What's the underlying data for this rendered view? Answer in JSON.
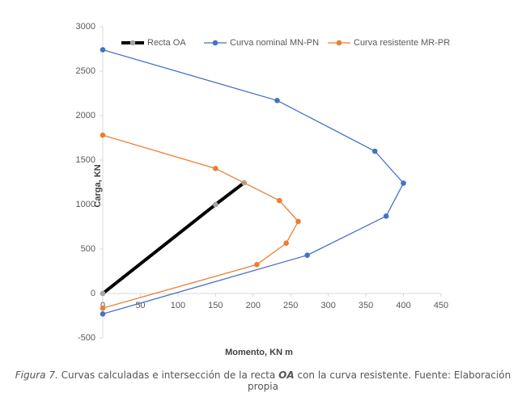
{
  "chart_data": {
    "type": "line",
    "x_label": "Momento, KN m",
    "y_label": "Carga, KN",
    "xlim": [
      0,
      450
    ],
    "xticks": [
      0,
      50,
      100,
      150,
      200,
      250,
      300,
      350,
      400,
      450
    ],
    "ylim": [
      -500,
      3000
    ],
    "yticks": [
      -500,
      0,
      500,
      1000,
      1500,
      2000,
      2500,
      3000
    ],
    "grid": false,
    "legend": "top",
    "series": [
      {
        "name": "Recta OA",
        "color": "#000000",
        "marker_color": "#a5a5a5",
        "line_width": 4,
        "x": [
          0,
          150,
          188
        ],
        "values": [
          0,
          1000,
          1245
        ]
      },
      {
        "name": "Curva nominal MN-PN",
        "color": "#4472c4",
        "marker_color": "#4472c4",
        "line_width": 1.3,
        "x": [
          0,
          232,
          362,
          400,
          377,
          272,
          0
        ],
        "values": [
          2740,
          2170,
          1600,
          1240,
          870,
          430,
          -230
        ]
      },
      {
        "name": "Curva resistente MR-PR",
        "color": "#ed7d31",
        "marker_color": "#ed7d31",
        "line_width": 1.3,
        "x": [
          0,
          150,
          235,
          260,
          244,
          205,
          0
        ],
        "values": [
          1780,
          1405,
          1045,
          810,
          565,
          325,
          -165
        ]
      }
    ]
  },
  "caption": {
    "label": "Figura 7.",
    "text_a": " Curvas calculadas e intersección de la recta ",
    "emphasis": "OA",
    "text_b": " con la curva resistente. Fuente: Elaboración propia"
  }
}
